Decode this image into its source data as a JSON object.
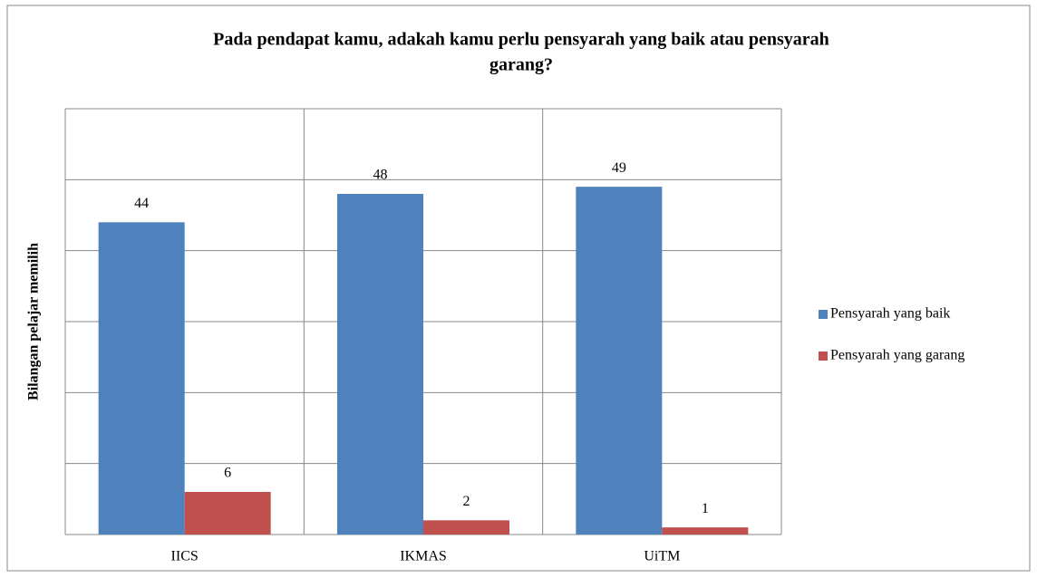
{
  "chart_data": {
    "type": "bar",
    "title": "Pada pendapat kamu, adakah kamu perlu pensyarah yang baik atau pensyarah garang?",
    "ylabel": "Bilangan pelajar memilih",
    "categories": [
      "IICS",
      "IKMAS",
      "UiTM"
    ],
    "series": [
      {
        "name": "Pensyarah yang baik",
        "color": "#4f81bd",
        "values": [
          44,
          48,
          49
        ]
      },
      {
        "name": "Pensyarah yang garang",
        "color": "#c0504d",
        "values": [
          6,
          2,
          1
        ]
      }
    ],
    "ylim": [
      0,
      60
    ],
    "yticks": [
      0,
      10,
      20,
      30,
      40,
      50,
      60
    ],
    "grid": true,
    "legend": "right"
  }
}
